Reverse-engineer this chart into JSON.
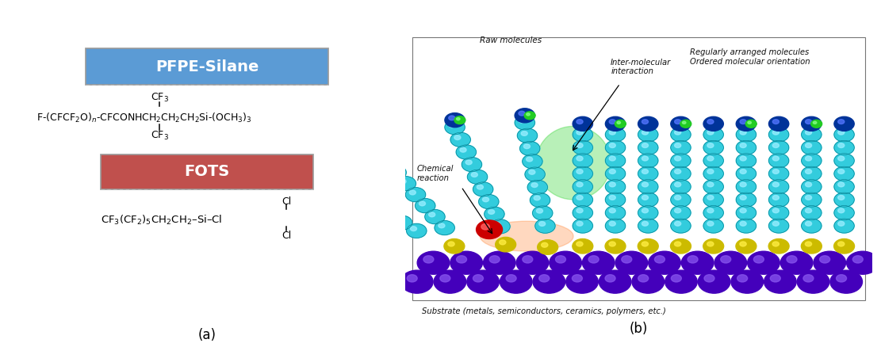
{
  "panel_a": {
    "pfpe_box_text": "PFPE-Silane",
    "pfpe_box_color": "#5B9BD5",
    "pfpe_box_text_color": "white",
    "fots_box_text": "FOTS",
    "fots_box_color": "#C0504D",
    "fots_box_text_color": "white",
    "label": "(a)"
  },
  "panel_b": {
    "label": "(b)",
    "text_raw": "Raw molecules",
    "text_inter": "Inter-molecular\ninteraction",
    "text_regular": "Regularly arranged molecules\nOrdered molecular orientation",
    "text_chem": "Chemical\nreaction",
    "text_substrate": "Substrate (metals, semiconductors, ceramics, polymers, etc.)"
  },
  "bg_color": "white",
  "fig_width": 11.11,
  "fig_height": 4.38
}
